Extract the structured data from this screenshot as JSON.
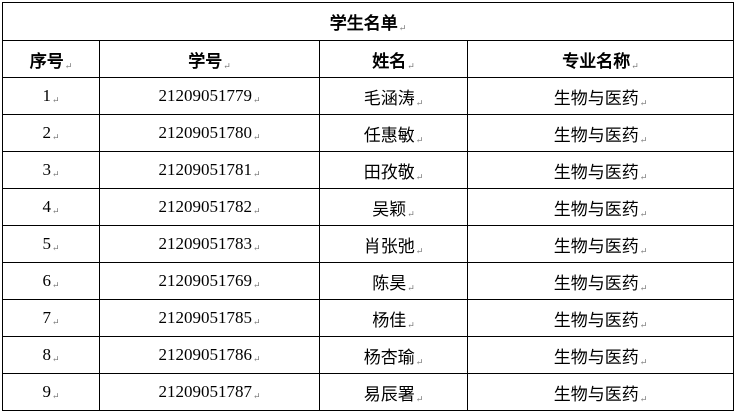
{
  "title": "学生名单",
  "headers": [
    "序号",
    "学号",
    "姓名",
    "专业名称"
  ],
  "rows": [
    [
      "1",
      "21209051779",
      "毛涵涛",
      "生物与医药"
    ],
    [
      "2",
      "21209051780",
      "任惠敏",
      "生物与医药"
    ],
    [
      "3",
      "21209051781",
      "田孜敬",
      "生物与医药"
    ],
    [
      "4",
      "21209051782",
      "吴颖",
      "生物与医药"
    ],
    [
      "5",
      "21209051783",
      "肖张弛",
      "生物与医药"
    ],
    [
      "6",
      "21209051769",
      "陈昊",
      "生物与医药"
    ],
    [
      "7",
      "21209051785",
      "杨佳",
      "生物与医药"
    ],
    [
      "8",
      "21209051786",
      "杨杏瑜",
      "生物与医药"
    ],
    [
      "9",
      "21209051787",
      "易辰署",
      "生物与医药"
    ]
  ]
}
